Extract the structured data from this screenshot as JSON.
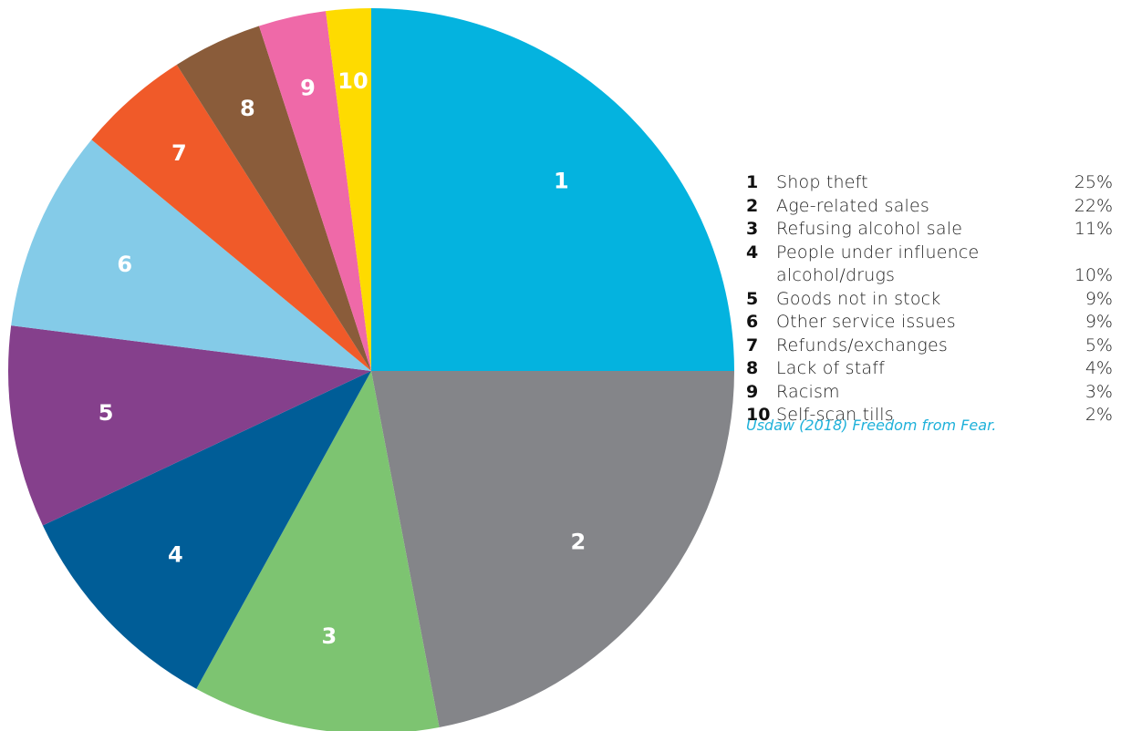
{
  "chart_data": {
    "type": "pie",
    "title": "",
    "slices": [
      {
        "label": "1",
        "name": "Shop theft",
        "value": 25,
        "display": "25%",
        "color": "#04b3df"
      },
      {
        "label": "2",
        "name": "Age-related sales",
        "value": 22,
        "display": "22%",
        "color": "#848589"
      },
      {
        "label": "3",
        "name": "Refusing alcohol sale",
        "value": 11,
        "display": "11%",
        "color": "#7dc471"
      },
      {
        "label": "4",
        "name": "People under influence alcohol/drugs",
        "value": 10,
        "display": "10%",
        "color": "#005d97"
      },
      {
        "label": "5",
        "name": "Goods not in stock",
        "value": 9,
        "display": "9%",
        "color": "#85408c"
      },
      {
        "label": "6",
        "name": "Other service issues",
        "value": 9,
        "display": "9%",
        "color": "#84cbe8"
      },
      {
        "label": "7",
        "name": "Refunds/exchanges",
        "value": 5,
        "display": "5%",
        "color": "#f05a29"
      },
      {
        "label": "8",
        "name": "Lack of staff",
        "value": 4,
        "display": "4%",
        "color": "#8a5c3a"
      },
      {
        "label": "9",
        "name": "Racism",
        "value": 3,
        "display": "3%",
        "color": "#ef69a8"
      },
      {
        "label": "10",
        "name": "Self-scan tills",
        "value": 2,
        "display": "2%",
        "color": "#fedb00"
      }
    ],
    "start_angle": "12 o'clock",
    "direction": "clockwise",
    "legend": "right"
  },
  "source_note": "Usdaw (2018) Freedom from Fear."
}
